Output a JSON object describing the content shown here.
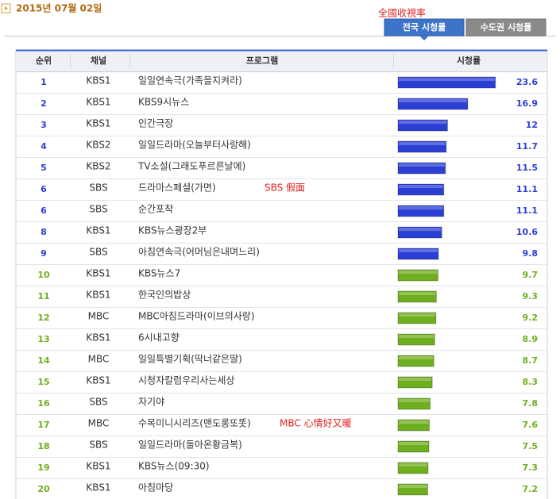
{
  "header": {
    "date": "2015년 07월 02일",
    "annotation": "全國收視率"
  },
  "tabs": [
    {
      "label": "전국 시청률",
      "active": true
    },
    {
      "label": "수도권 시청률",
      "active": false
    }
  ],
  "table": {
    "columns": [
      "순위",
      "채널",
      "프로그램",
      "시청률"
    ],
    "rows": [
      {
        "rank": 1,
        "channel": "KBS1",
        "program": "일일연속극(가족을지켜라)",
        "rating": 23.6,
        "color": "#2b3fd4"
      },
      {
        "rank": 2,
        "channel": "KBS1",
        "program": "KBS9시뉴스",
        "rating": 16.9,
        "color": "#2b3fd4"
      },
      {
        "rank": 3,
        "channel": "KBS1",
        "program": "인간극장",
        "rating": 12,
        "color": "#2b3fd4"
      },
      {
        "rank": 4,
        "channel": "KBS2",
        "program": "일일드라마(오늘부터사랑해)",
        "rating": 11.7,
        "color": "#2b3fd4"
      },
      {
        "rank": 5,
        "channel": "KBS2",
        "program": "TV소설(그래도푸르른날에)",
        "rating": 11.5,
        "color": "#2b3fd4"
      },
      {
        "rank": 6,
        "channel": "SBS",
        "program": "드라마스페셜(가면)",
        "rating": 11.1,
        "color": "#2b3fd4",
        "note": "SBS 假面"
      },
      {
        "rank": 6,
        "channel": "SBS",
        "program": "순간포착",
        "rating": 11.1,
        "color": "#2b3fd4"
      },
      {
        "rank": 8,
        "channel": "KBS1",
        "program": "KBS뉴스광장2부",
        "rating": 10.6,
        "color": "#2b3fd4"
      },
      {
        "rank": 9,
        "channel": "SBS",
        "program": "아침연속극(어머님은내며느리)",
        "rating": 9.8,
        "color": "#2b3fd4"
      },
      {
        "rank": 10,
        "channel": "KBS1",
        "program": "KBS뉴스7",
        "rating": 9.7,
        "color": "#6fae1e"
      },
      {
        "rank": 11,
        "channel": "KBS1",
        "program": "한국인의밥상",
        "rating": 9.3,
        "color": "#6fae1e"
      },
      {
        "rank": 12,
        "channel": "MBC",
        "program": "MBC아침드라마(이브의사랑)",
        "rating": 9.2,
        "color": "#6fae1e"
      },
      {
        "rank": 13,
        "channel": "KBS1",
        "program": "6시내고향",
        "rating": 8.9,
        "color": "#6fae1e"
      },
      {
        "rank": 14,
        "channel": "MBC",
        "program": "일일특별기획(딱너같은딸)",
        "rating": 8.7,
        "color": "#6fae1e"
      },
      {
        "rank": 15,
        "channel": "KBS1",
        "program": "시청자칼럼우리사는세상",
        "rating": 8.3,
        "color": "#6fae1e"
      },
      {
        "rank": 16,
        "channel": "SBS",
        "program": "자기야",
        "rating": 7.8,
        "color": "#6fae1e"
      },
      {
        "rank": 17,
        "channel": "MBC",
        "program": "수목미니시리즈(맨도롱또똣)",
        "rating": 7.6,
        "color": "#6fae1e",
        "note": "MBC 心情好又暖"
      },
      {
        "rank": 18,
        "channel": "SBS",
        "program": "일일드라마(돌아온황금복)",
        "rating": 7.5,
        "color": "#6fae1e"
      },
      {
        "rank": 19,
        "channel": "KBS1",
        "program": "KBS뉴스(09:30)",
        "rating": 7.3,
        "color": "#6fae1e"
      },
      {
        "rank": 20,
        "channel": "KBS1",
        "program": "아침마당",
        "rating": 7.2,
        "color": "#6fae1e"
      }
    ]
  }
}
